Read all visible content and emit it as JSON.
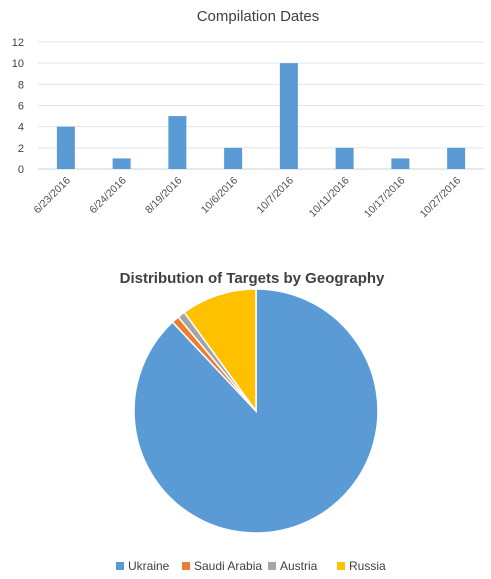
{
  "chart_data": [
    {
      "type": "bar",
      "title": "Compilation Dates",
      "categories": [
        "6/23/2016",
        "6/24/2016",
        "8/19/2016",
        "10/6/2016",
        "10/7/2016",
        "10/11/2016",
        "10/17/2016",
        "10/27/2016"
      ],
      "values": [
        4,
        1,
        5,
        2,
        10,
        2,
        1,
        2
      ],
      "ylim": [
        0,
        12
      ],
      "yticks": [
        "0",
        "2",
        "4",
        "6",
        "8",
        "10",
        "12"
      ],
      "grid": true,
      "legend": "none",
      "color": "#5b9bd5"
    },
    {
      "type": "pie",
      "title": "Distribution of Targets by Geography",
      "legend_position": "bottom",
      "slices": [
        {
          "label": "Ukraine",
          "value": 88,
          "color": "#5b9bd5"
        },
        {
          "label": "Saudi Arabia",
          "value": 1,
          "color": "#ed7d31"
        },
        {
          "label": "Austria",
          "value": 1,
          "color": "#a5a5a5"
        },
        {
          "label": "Russia",
          "value": 10,
          "color": "#ffc000"
        }
      ]
    }
  ]
}
